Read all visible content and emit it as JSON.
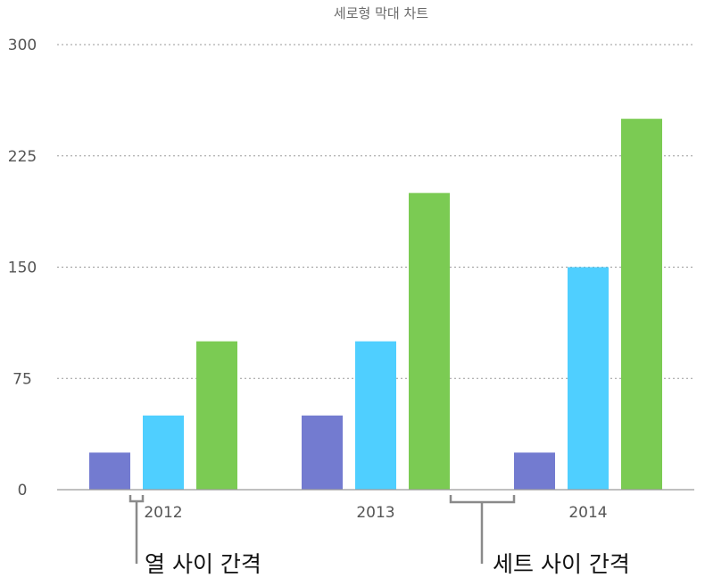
{
  "chart_data": {
    "type": "bar",
    "title": "세로형 막대 차트",
    "categories": [
      "2012",
      "2013",
      "2014"
    ],
    "series": [
      {
        "values": [
          25,
          50,
          25
        ],
        "color": "#737bd0"
      },
      {
        "values": [
          50,
          100,
          150
        ],
        "color": "#4fcfff"
      },
      {
        "values": [
          100,
          200,
          250
        ],
        "color": "#7bcb53"
      }
    ],
    "yticks": [
      "0",
      "75",
      "150",
      "225",
      "300"
    ],
    "ylim": [
      0,
      300
    ],
    "grid": true,
    "legend": "none"
  },
  "annotations": {
    "column_gap": "열 사이 간격",
    "set_gap": "세트 사이 간격"
  }
}
